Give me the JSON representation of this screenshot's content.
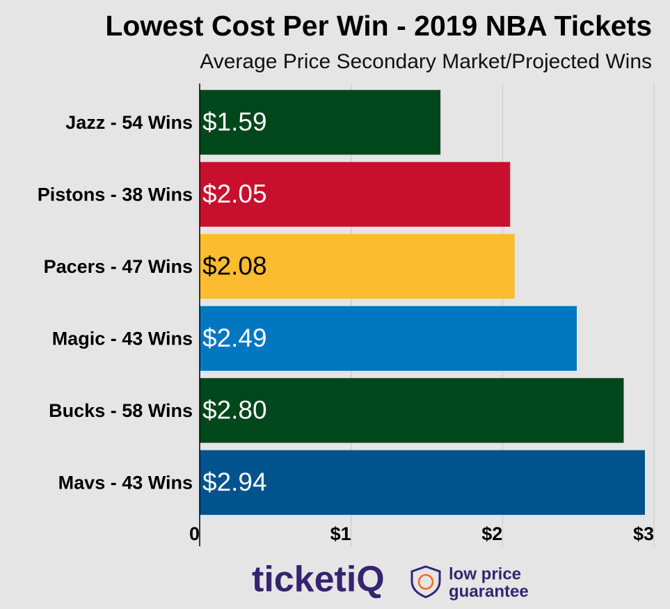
{
  "chart_data": {
    "type": "hbar",
    "title": "Lowest Cost Per Win - 2019 NBA Tickets",
    "subtitle": "Average Price Secondary Market/Projected Wins",
    "categories": [
      "Jazz - 54 Wins",
      "Pistons - 38 Wins",
      "Pacers - 47 Wins",
      "Magic - 43 Wins",
      "Bucks - 58 Wins",
      "Mavs - 43 Wins"
    ],
    "values": [
      1.59,
      2.05,
      2.08,
      2.49,
      2.8,
      2.94
    ],
    "value_labels": [
      "$1.59",
      "$2.05",
      "$2.08",
      "$2.49",
      "$2.80",
      "$2.94"
    ],
    "colors": [
      "#00471b",
      "#c8102e",
      "#fdbb30",
      "#0077c0",
      "#00471b",
      "#00538c"
    ],
    "xlim": [
      0,
      3
    ],
    "xticks": [
      0,
      {
        "value": 1,
        "label": "$1"
      },
      {
        "value": 2,
        "label": "$2"
      },
      {
        "value": 3,
        "label": "$3"
      }
    ],
    "grid": true
  },
  "footer": {
    "brand": "ticketiQ",
    "tagline": [
      "low price",
      "guarantee"
    ]
  }
}
